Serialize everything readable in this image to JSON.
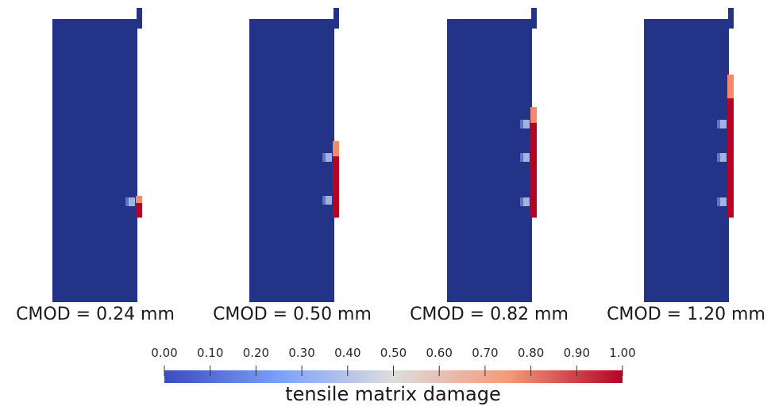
{
  "panels": [
    {
      "label": "CMOD = 0.24 mm",
      "cmod": 0.24
    },
    {
      "label": "CMOD = 0.50 mm",
      "cmod": 0.5
    },
    {
      "label": "CMOD = 0.82 mm",
      "cmod": 0.82
    },
    {
      "label": "CMOD = 1.20 mm",
      "cmod": 1.2
    }
  ],
  "colorbar": {
    "title": "tensile matrix damage",
    "min": 0.0,
    "max": 1.0,
    "ticks": [
      "0.00",
      "0.10",
      "0.20",
      "0.30",
      "0.40",
      "0.50",
      "0.60",
      "0.70",
      "0.80",
      "0.90",
      "1.00"
    ],
    "colors": {
      "low": "#3b4cc0",
      "mid": "#dddddd",
      "high": "#b40426"
    }
  },
  "colors": {
    "specimen": "#223388",
    "damage_high": "#b40426",
    "damage_mid": "#f08a6b",
    "damage_low": "#b8c8f0"
  }
}
